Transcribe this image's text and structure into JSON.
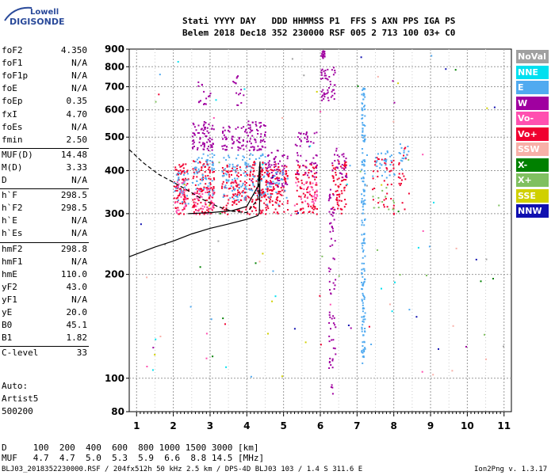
{
  "logo": {
    "top": "Lowell",
    "bottom": "DIGISONDE"
  },
  "header": {
    "line1": "Stati YYYY DAY   DDD HHMMSS P1  FFS S AXN PPS IGA PS",
    "line2": "Belem 2018 Dec18 352 230000 RSF 005 2 713 100 03+ C0"
  },
  "params": [
    {
      "name": "foF2",
      "value": "4.350"
    },
    {
      "name": "foF1",
      "value": "N/A"
    },
    {
      "name": "foF1p",
      "value": "N/A"
    },
    {
      "name": "foE",
      "value": "N/A"
    },
    {
      "name": "foEp",
      "value": "0.35"
    },
    {
      "name": "fxI",
      "value": "4.70"
    },
    {
      "name": "foEs",
      "value": "N/A"
    },
    {
      "name": "fmin",
      "value": "2.50"
    },
    {
      "name": "MUF(D)",
      "value": "14.48"
    },
    {
      "name": "M(D)",
      "value": "3.33"
    },
    {
      "name": "D",
      "value": "N/A"
    },
    {
      "name": "h`F",
      "value": "298.5"
    },
    {
      "name": "h`F2",
      "value": "298.5"
    },
    {
      "name": "h`E",
      "value": "N/A"
    },
    {
      "name": "h`Es",
      "value": "N/A"
    },
    {
      "name": "hmF2",
      "value": "298.8"
    },
    {
      "name": "hmF1",
      "value": "N/A"
    },
    {
      "name": "hmE",
      "value": "110.0"
    },
    {
      "name": "yF2",
      "value": "43.0"
    },
    {
      "name": "yF1",
      "value": "N/A"
    },
    {
      "name": "yE",
      "value": "20.0"
    },
    {
      "name": "B0",
      "value": "45.1"
    },
    {
      "name": "B1",
      "value": "1.82"
    },
    {
      "name": "C-level",
      "value": "33"
    }
  ],
  "auto": {
    "line1": "Auto:",
    "line2": "Artist5",
    "line3": "500200"
  },
  "legend": [
    {
      "label": "NoVal",
      "color": "#a0a0a0"
    },
    {
      "label": "NNE",
      "color": "#00e0f0"
    },
    {
      "label": "E",
      "color": "#50aaf0"
    },
    {
      "label": "W",
      "color": "#a000a0"
    },
    {
      "label": "Vo-",
      "color": "#ff50b0"
    },
    {
      "label": "Vo+",
      "color": "#f00030"
    },
    {
      "label": "SSW",
      "color": "#f8b0a8"
    },
    {
      "label": "X-",
      "color": "#008000"
    },
    {
      "label": "X+",
      "color": "#80c060"
    },
    {
      "label": "SSE",
      "color": "#d0d000"
    },
    {
      "label": "NNW",
      "color": "#1010b0"
    }
  ],
  "footer": {
    "d_row": "D     100  200  400  600  800 1000 1500 3000 [km]",
    "muf_row": "MUF   4.7  4.7  5.0  5.3  5.9  6.6  8.8 14.5 [MHz]",
    "file": "BLJ03_2018352230000.RSF / 204fx512h 50 kHz 2.5 km / DPS-4D BLJ03 103 / 1.4 S 311.6 E",
    "version": "Ion2Png v. 1.3.17"
  },
  "chart_data": {
    "type": "scatter",
    "x_ticks": [
      "1",
      "2",
      "3",
      "4",
      "5",
      "6",
      "7",
      "8",
      "9",
      "10",
      "11"
    ],
    "y_ticks": [
      "80",
      "100",
      "200",
      "300",
      "400",
      "500",
      "600",
      "700",
      "800",
      "900"
    ],
    "xlim": [
      0.8,
      11.2
    ],
    "ylim": [
      80,
      900
    ],
    "y_scale": "log",
    "grid": true,
    "legend_position": "right",
    "echo_clusters": [
      {
        "freq": [
          2.0,
          2.4
        ],
        "height": [
          300,
          420
        ],
        "color": "#f00030",
        "density": 90
      },
      {
        "freq": [
          2.0,
          2.4
        ],
        "height": [
          320,
          400
        ],
        "color": "#50aaf0",
        "density": 30
      },
      {
        "freq": [
          2.0,
          2.4
        ],
        "height": [
          300,
          380
        ],
        "color": "#ff50b0",
        "density": 25
      },
      {
        "freq": [
          2.5,
          3.1
        ],
        "height": [
          300,
          430
        ],
        "color": "#f00030",
        "density": 120
      },
      {
        "freq": [
          2.5,
          3.1
        ],
        "height": [
          340,
          450
        ],
        "color": "#50aaf0",
        "density": 60
      },
      {
        "freq": [
          2.5,
          3.1
        ],
        "height": [
          460,
          560
        ],
        "color": "#a000a0",
        "density": 70
      },
      {
        "freq": [
          2.5,
          3.1
        ],
        "height": [
          300,
          360
        ],
        "color": "#ff50b0",
        "density": 40
      },
      {
        "freq": [
          3.3,
          4.0
        ],
        "height": [
          300,
          420
        ],
        "color": "#f00030",
        "density": 110
      },
      {
        "freq": [
          3.3,
          4.0
        ],
        "height": [
          330,
          450
        ],
        "color": "#50aaf0",
        "density": 70
      },
      {
        "freq": [
          3.3,
          4.0
        ],
        "height": [
          460,
          540
        ],
        "color": "#a000a0",
        "density": 60
      },
      {
        "freq": [
          4.0,
          4.5
        ],
        "height": [
          300,
          440
        ],
        "color": "#f00030",
        "density": 100
      },
      {
        "freq": [
          4.0,
          4.5
        ],
        "height": [
          340,
          450
        ],
        "color": "#50aaf0",
        "density": 40
      },
      {
        "freq": [
          4.0,
          4.5
        ],
        "height": [
          460,
          560
        ],
        "color": "#a000a0",
        "density": 60
      },
      {
        "freq": [
          4.5,
          5.1
        ],
        "height": [
          300,
          420
        ],
        "color": "#f00030",
        "density": 110
      },
      {
        "freq": [
          4.5,
          5.1
        ],
        "height": [
          360,
          460
        ],
        "color": "#a000a0",
        "density": 60
      },
      {
        "freq": [
          4.5,
          5.1
        ],
        "height": [
          320,
          400
        ],
        "color": "#50aaf0",
        "density": 30
      },
      {
        "freq": [
          5.3,
          5.9
        ],
        "height": [
          300,
          420
        ],
        "color": "#f00030",
        "density": 90
      },
      {
        "freq": [
          5.3,
          5.9
        ],
        "height": [
          380,
          520
        ],
        "color": "#a000a0",
        "density": 50
      },
      {
        "freq": [
          5.3,
          5.9
        ],
        "height": [
          320,
          380
        ],
        "color": "#ff50b0",
        "density": 30
      },
      {
        "freq": [
          6.3,
          6.7
        ],
        "height": [
          300,
          430
        ],
        "color": "#f00030",
        "density": 70
      },
      {
        "freq": [
          6.3,
          6.7
        ],
        "height": [
          380,
          470
        ],
        "color": "#a000a0",
        "density": 30
      },
      {
        "freq": [
          7.4,
          8.0
        ],
        "height": [
          300,
          440
        ],
        "color": "#f00030",
        "density": 40
      },
      {
        "freq": [
          7.4,
          8.0
        ],
        "height": [
          380,
          460
        ],
        "color": "#50aaf0",
        "density": 30
      },
      {
        "freq": [
          7.4,
          8.0
        ],
        "height": [
          310,
          380
        ],
        "color": "#80c060",
        "density": 12
      },
      {
        "freq": [
          8.1,
          8.4
        ],
        "height": [
          310,
          470
        ],
        "color": "#f00030",
        "density": 20
      },
      {
        "freq": [
          8.1,
          8.4
        ],
        "height": [
          400,
          480
        ],
        "color": "#50aaf0",
        "density": 15
      },
      {
        "freq": [
          2.6,
          3.0
        ],
        "height": [
          620,
          740
        ],
        "color": "#a000a0",
        "density": 15
      },
      {
        "freq": [
          3.5,
          3.9
        ],
        "height": [
          620,
          760
        ],
        "color": "#a000a0",
        "density": 15
      },
      {
        "freq": [
          6.0,
          6.4
        ],
        "height": [
          640,
          800
        ],
        "color": "#a000a0",
        "density": 50
      },
      {
        "freq": [
          6.2,
          6.4
        ],
        "height": [
          90,
          360
        ],
        "color": "#a000a0",
        "density": 70
      },
      {
        "freq": [
          7.1,
          7.2
        ],
        "height": [
          110,
          700
        ],
        "color": "#50aaf0",
        "density": 180
      },
      {
        "freq": [
          6.0,
          6.1
        ],
        "height": [
          850,
          900
        ],
        "color": "#a000a0",
        "density": 20
      }
    ],
    "trace_solid": [
      [
        0.8,
        225
      ],
      [
        1.5,
        240
      ],
      [
        2.0,
        250
      ],
      [
        2.5,
        262
      ],
      [
        3.0,
        272
      ],
      [
        3.5,
        280
      ],
      [
        4.0,
        289
      ],
      [
        4.3,
        296
      ],
      [
        4.34,
        302
      ],
      [
        4.35,
        330
      ],
      [
        4.36,
        420
      ]
    ],
    "trace_dashed": [
      [
        0.8,
        460
      ],
      [
        1.2,
        420
      ],
      [
        1.6,
        390
      ],
      [
        2.0,
        370
      ],
      [
        2.4,
        350
      ],
      [
        2.8,
        330
      ],
      [
        3.2,
        315
      ],
      [
        3.6,
        305
      ],
      [
        4.0,
        302
      ],
      [
        4.3,
        330
      ],
      [
        4.35,
        390
      ]
    ],
    "trace_solid2": [
      [
        2.4,
        300
      ],
      [
        3.0,
        302
      ],
      [
        3.6,
        306
      ],
      [
        4.0,
        315
      ],
      [
        4.3,
        360
      ],
      [
        4.36,
        425
      ]
    ]
  }
}
